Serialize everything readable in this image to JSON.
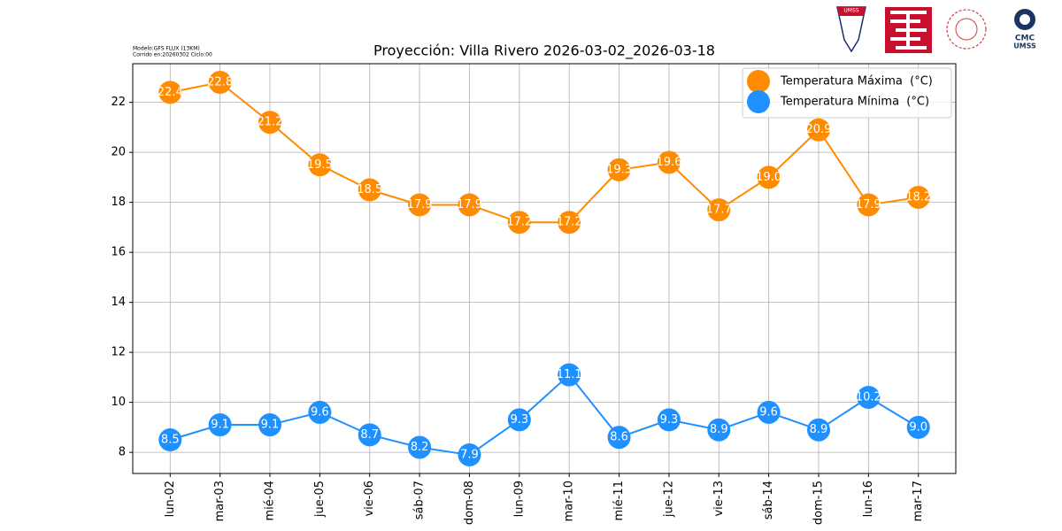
{
  "logos": {
    "shield": "UMSS",
    "cmc": [
      "CMC",
      "UMSS"
    ]
  },
  "chart_data": {
    "type": "line",
    "title": "Proyección: Villa Rivero 2026-03-02_2026-03-18",
    "model_info": [
      "Modelo:GFS FLUX (13KM)",
      "Corrido en:20260302 Ciclo:00"
    ],
    "categories": [
      "lun-02",
      "mar-03",
      "mié-04",
      "jue-05",
      "vie-06",
      "sáb-07",
      "dom-08",
      "lun-09",
      "mar-10",
      "mié-11",
      "jue-12",
      "vie-13",
      "sáb-14",
      "dom-15",
      "lun-16",
      "mar-17"
    ],
    "series": [
      {
        "name": "Temperatura Máxima  (°C)",
        "color": "#ff8c00",
        "values": [
          22.4,
          22.8,
          21.2,
          19.5,
          18.5,
          17.9,
          17.9,
          17.2,
          17.2,
          19.3,
          19.6,
          17.7,
          19.0,
          20.9,
          17.9,
          18.2
        ],
        "value_labels": [
          "22.4",
          "22.8",
          "21.2",
          "19.5",
          "18.5",
          "17.9",
          "17.9",
          "17.2",
          "17.2",
          "19.3",
          "19.6",
          "17.7",
          "19.0",
          "20.9",
          "17.9",
          "18.2"
        ]
      },
      {
        "name": "Temperatura Mínima  (°C)",
        "color": "#1e90ff",
        "values": [
          8.5,
          9.1,
          9.1,
          9.6,
          8.7,
          8.2,
          7.9,
          9.3,
          11.1,
          8.6,
          9.3,
          8.9,
          9.6,
          8.9,
          10.2,
          9.0
        ],
        "value_labels": [
          "8.5",
          "9.1",
          "9.1",
          "9.6",
          "8.7",
          "8.2",
          "7.9",
          "9.3",
          "11.1",
          "8.6",
          "9.3",
          "8.9",
          "9.6",
          "8.9",
          "10.2",
          "9.0"
        ]
      }
    ],
    "ylim": [
      7.155,
      23.545
    ],
    "yticks": [
      8,
      10,
      12,
      14,
      16,
      18,
      20,
      22
    ],
    "grid": true,
    "legend": "upper right"
  }
}
